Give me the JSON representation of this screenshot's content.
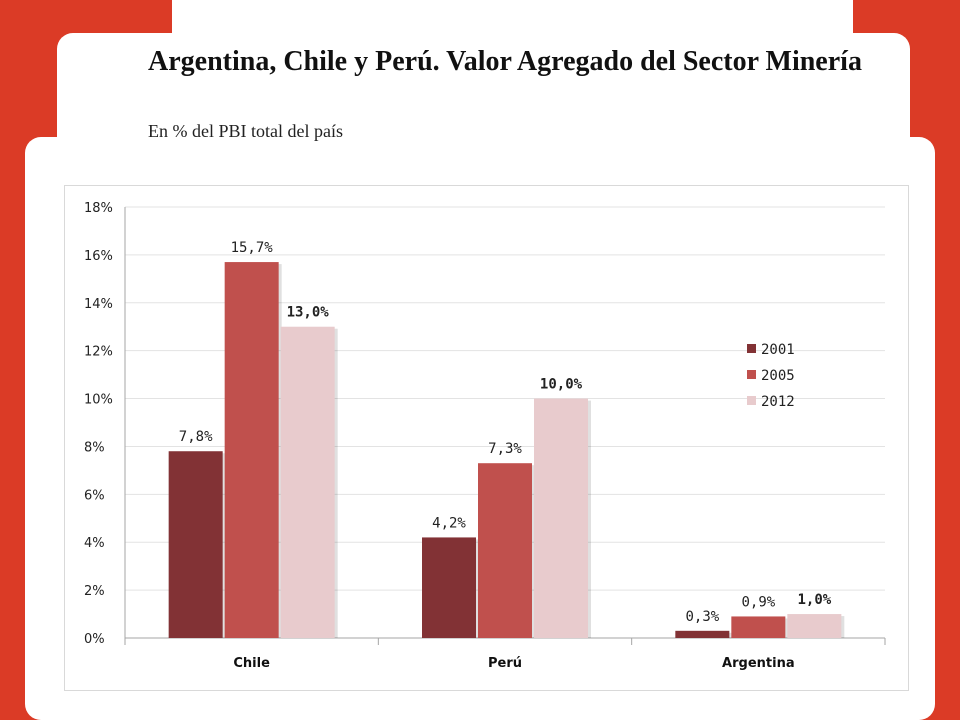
{
  "title": "Argentina, Chile y Perú. Valor Agregado del Sector Minería",
  "subtitle": "En % del PBI total del país",
  "colors": {
    "background_accent": "#db3b26",
    "series_2001": "#823235",
    "series_2005": "#c0504d",
    "series_2012": "#e8cbcd"
  },
  "chart_data": {
    "type": "bar",
    "categories": [
      "Chile",
      "Perú",
      "Argentina"
    ],
    "series": [
      {
        "name": "2001",
        "values": [
          7.8,
          4.2,
          0.3
        ],
        "labels": [
          "7,8%",
          "4,2%",
          "0,3%"
        ],
        "color": "#823235"
      },
      {
        "name": "2005",
        "values": [
          15.7,
          7.3,
          0.9
        ],
        "labels": [
          "15,7%",
          "7,3%",
          "0,9%"
        ],
        "color": "#c0504d"
      },
      {
        "name": "2012",
        "values": [
          13.0,
          10.0,
          1.0
        ],
        "labels": [
          "13,0%",
          "10,0%",
          "1,0%"
        ],
        "color": "#e8cbcd"
      }
    ],
    "ylim": [
      0,
      18
    ],
    "yticks": [
      "0%",
      "2%",
      "4%",
      "6%",
      "8%",
      "10%",
      "12%",
      "14%",
      "16%",
      "18%"
    ],
    "grid": true,
    "legend": "right"
  }
}
